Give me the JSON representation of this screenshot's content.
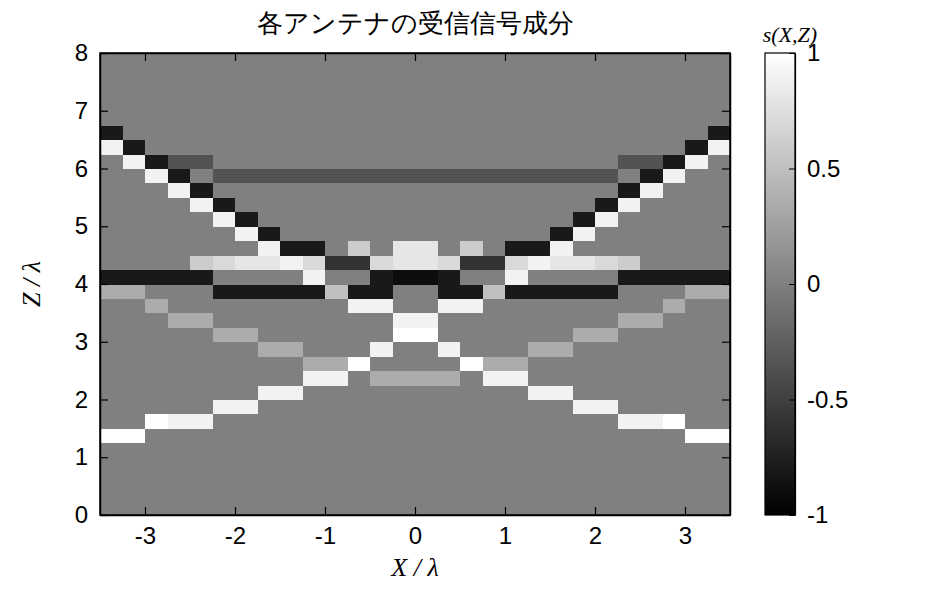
{
  "chart_data": {
    "type": "heatmap",
    "title": "各アンテナの受信信号成分",
    "x_label": "X / λ",
    "y_label": "Z / λ",
    "xlim": [
      -3.5,
      3.5
    ],
    "ylim": [
      0,
      8
    ],
    "xticks": [
      -3,
      -2,
      -1,
      0,
      1,
      2,
      3
    ],
    "yticks": [
      0,
      1,
      2,
      3,
      4,
      5,
      6,
      7,
      8
    ],
    "x_bins": [
      -3.5,
      -3.25,
      -3,
      -2.75,
      -2.5,
      -2.25,
      -2,
      -1.75,
      -1.5,
      -1.25,
      -1,
      -0.75,
      -0.5,
      -0.25,
      0,
      0.25,
      0.5,
      0.75,
      1,
      1.25,
      1.5,
      1.75,
      2,
      2.25,
      2.5,
      2.75,
      3,
      3.25,
      3.5
    ],
    "y_bins": [
      0,
      0.25,
      0.5,
      0.75,
      1,
      1.25,
      1.5,
      1.75,
      2,
      2.25,
      2.5,
      2.75,
      3,
      3.25,
      3.5,
      3.75,
      4,
      4.25,
      4.5,
      4.75,
      5,
      5.25,
      5.5,
      5.75,
      6,
      6.25,
      6.5,
      6.75,
      7,
      7.25,
      7.5,
      7.75,
      8
    ],
    "cells": [
      [
        0,
        0,
        0,
        0,
        0,
        0,
        0,
        0,
        0,
        0,
        0,
        0,
        0,
        0,
        0,
        0,
        0,
        0,
        0,
        0,
        0,
        0,
        0,
        0,
        0,
        0,
        0,
        0
      ],
      [
        0,
        0,
        0,
        0,
        0,
        0,
        0,
        0,
        0,
        0,
        0,
        0,
        0,
        0,
        0,
        0,
        0,
        0,
        0,
        0,
        0,
        0,
        0,
        0,
        0,
        0,
        0,
        0
      ],
      [
        0,
        0,
        0,
        0,
        0,
        0,
        0,
        0,
        0,
        0,
        0,
        0,
        0,
        0,
        0,
        0,
        0,
        0,
        0,
        0,
        0,
        0,
        0,
        0,
        0,
        0,
        0,
        0
      ],
      [
        0,
        0,
        0,
        0,
        0,
        0,
        0,
        0,
        0,
        0,
        0,
        0,
        0,
        0,
        0,
        0,
        0,
        0,
        0,
        0,
        0,
        0,
        0,
        0,
        0,
        0,
        0,
        0
      ],
      [
        0,
        0,
        0,
        0,
        0,
        0,
        0,
        0,
        0,
        0,
        0,
        0,
        0,
        0,
        0,
        0,
        0,
        0,
        0,
        0,
        0,
        0,
        0,
        0,
        0,
        0,
        0,
        0
      ],
      [
        1,
        1,
        0,
        0,
        0,
        0,
        0,
        0,
        0,
        0,
        0,
        0,
        0,
        0,
        0,
        0,
        0,
        0,
        0,
        0,
        0,
        0,
        0,
        0,
        0,
        0,
        1,
        1
      ],
      [
        0,
        0,
        1,
        0.9,
        0.9,
        0,
        0,
        0,
        0,
        0,
        0,
        0,
        0,
        0,
        0,
        0,
        0,
        0,
        0,
        0,
        0,
        0,
        0,
        0.9,
        0.9,
        1,
        0,
        0
      ],
      [
        0,
        0,
        0,
        0,
        0,
        0.9,
        0.9,
        0,
        0,
        0,
        0,
        0,
        0,
        0,
        0,
        0,
        0,
        0,
        0,
        0,
        0,
        0.9,
        0.9,
        0,
        0,
        0,
        0,
        0
      ],
      [
        0,
        0,
        0,
        0,
        0,
        0,
        0,
        0.9,
        0.9,
        0,
        0,
        0,
        0,
        0,
        0,
        0,
        0,
        0,
        0,
        0.9,
        0.9,
        0,
        0,
        0,
        0,
        0,
        0,
        0
      ],
      [
        0,
        0,
        0,
        0,
        0,
        0,
        0,
        0,
        0,
        0.9,
        0.9,
        0,
        0.35,
        0.35,
        0.35,
        0.35,
        0,
        0.9,
        0.9,
        0,
        0,
        0,
        0,
        0,
        0,
        0,
        0,
        0
      ],
      [
        0,
        0,
        0,
        0,
        0,
        0,
        0,
        0,
        0,
        0.35,
        0.35,
        1,
        0,
        0,
        0,
        0,
        1,
        0.35,
        0.35,
        0,
        0,
        0,
        0,
        0,
        0,
        0,
        0,
        0
      ],
      [
        0,
        0,
        0,
        0,
        0,
        0,
        0,
        0.35,
        0.35,
        0,
        0,
        0,
        0.9,
        0,
        0,
        0.9,
        0,
        0,
        0,
        0.35,
        0.35,
        0,
        0,
        0,
        0,
        0,
        0,
        0
      ],
      [
        0,
        0,
        0,
        0,
        0,
        0.35,
        0.35,
        0,
        0,
        0,
        0,
        0,
        0,
        1,
        1,
        0,
        0,
        0,
        0,
        0,
        0,
        0.35,
        0.35,
        0,
        0,
        0,
        0,
        0
      ],
      [
        0,
        0,
        0,
        0.35,
        0.35,
        0,
        0,
        0,
        0,
        0,
        0,
        0,
        0,
        0.9,
        0.9,
        0,
        0,
        0,
        0,
        0,
        0,
        0,
        0,
        0.35,
        0.35,
        0,
        0,
        0
      ],
      [
        0,
        0,
        0.35,
        0,
        0,
        0,
        0,
        0,
        0,
        0,
        0,
        0.9,
        0.9,
        0,
        0,
        0.9,
        0.9,
        0,
        0,
        0,
        0,
        0,
        0,
        0,
        0,
        0.35,
        0,
        0
      ],
      [
        0.35,
        0.35,
        0,
        0,
        0,
        -0.8,
        -0.8,
        -0.8,
        -0.8,
        -0.8,
        0.5,
        -0.8,
        -0.8,
        0,
        0,
        -0.8,
        -0.8,
        0.5,
        -0.8,
        -0.8,
        -0.8,
        -0.8,
        -0.8,
        0,
        0,
        0,
        0.35,
        0.35
      ],
      [
        -0.8,
        -0.8,
        -0.8,
        -0.8,
        -0.8,
        0,
        0,
        0,
        0,
        0.9,
        0,
        0,
        -0.8,
        -0.9,
        -0.9,
        -0.8,
        0,
        0,
        0.9,
        0,
        0,
        0,
        0,
        -0.8,
        -0.8,
        -0.8,
        -0.8,
        -0.8
      ],
      [
        0,
        0,
        0,
        0,
        0.6,
        0.7,
        0.8,
        0.8,
        0.9,
        0.7,
        -0.6,
        -0.6,
        0.7,
        0.8,
        0.8,
        0.7,
        -0.6,
        -0.6,
        0.7,
        0.9,
        0.8,
        0.8,
        0.7,
        0.6,
        0,
        0,
        0,
        0
      ],
      [
        0,
        0,
        0,
        0,
        0,
        0,
        0,
        0.9,
        -0.8,
        -0.8,
        0,
        0.6,
        0,
        0.8,
        0.8,
        0,
        0.6,
        0,
        -0.8,
        -0.8,
        0.9,
        0,
        0,
        0,
        0,
        0,
        0,
        0
      ],
      [
        0,
        0,
        0,
        0,
        0,
        0,
        0.9,
        -0.8,
        0,
        0,
        0,
        0,
        0,
        0,
        0,
        0,
        0,
        0,
        0,
        0,
        -0.8,
        0.9,
        0,
        0,
        0,
        0,
        0,
        0
      ],
      [
        0,
        0,
        0,
        0,
        0,
        0.9,
        -0.8,
        0,
        0,
        0,
        0,
        0,
        0,
        0,
        0,
        0,
        0,
        0,
        0,
        0,
        0,
        -0.8,
        0.9,
        0,
        0,
        0,
        0,
        0
      ],
      [
        0,
        0,
        0,
        0,
        0.9,
        -0.8,
        0,
        0,
        0,
        0,
        0,
        0,
        0,
        0,
        0,
        0,
        0,
        0,
        0,
        0,
        0,
        0,
        -0.8,
        0.9,
        0,
        0,
        0,
        0
      ],
      [
        0,
        0,
        0,
        0.9,
        -0.8,
        0,
        0,
        0,
        0,
        0,
        0,
        0,
        0,
        0,
        0,
        0,
        0,
        0,
        0,
        0,
        0,
        0,
        0,
        -0.8,
        0.9,
        0,
        0,
        0
      ],
      [
        0,
        0,
        0.9,
        -0.8,
        0,
        -0.35,
        -0.35,
        -0.35,
        -0.35,
        -0.35,
        -0.35,
        -0.35,
        -0.35,
        -0.35,
        -0.35,
        -0.35,
        -0.35,
        -0.35,
        -0.35,
        -0.35,
        -0.35,
        -0.35,
        -0.35,
        0,
        -0.8,
        0.9,
        0,
        0
      ],
      [
        0,
        0.9,
        -0.8,
        -0.35,
        -0.35,
        0,
        0,
        0,
        0,
        0,
        0,
        0,
        0,
        0,
        0,
        0,
        0,
        0,
        0,
        0,
        0,
        0,
        0,
        -0.35,
        -0.35,
        -0.8,
        0.9,
        0
      ],
      [
        0.9,
        -0.8,
        0,
        0,
        0,
        0,
        0,
        0,
        0,
        0,
        0,
        0,
        0,
        0,
        0,
        0,
        0,
        0,
        0,
        0,
        0,
        0,
        0,
        0,
        0,
        0,
        -0.8,
        0.9
      ],
      [
        -0.8,
        0,
        0,
        0,
        0,
        0,
        0,
        0,
        0,
        0,
        0,
        0,
        0,
        0,
        0,
        0,
        0,
        0,
        0,
        0,
        0,
        0,
        0,
        0,
        0,
        0,
        0,
        -0.8
      ],
      [
        0,
        0,
        0,
        0,
        0,
        0,
        0,
        0,
        0,
        0,
        0,
        0,
        0,
        0,
        0,
        0,
        0,
        0,
        0,
        0,
        0,
        0,
        0,
        0,
        0,
        0,
        0,
        0
      ],
      [
        0,
        0,
        0,
        0,
        0,
        0,
        0,
        0,
        0,
        0,
        0,
        0,
        0,
        0,
        0,
        0,
        0,
        0,
        0,
        0,
        0,
        0,
        0,
        0,
        0,
        0,
        0,
        0
      ],
      [
        0,
        0,
        0,
        0,
        0,
        0,
        0,
        0,
        0,
        0,
        0,
        0,
        0,
        0,
        0,
        0,
        0,
        0,
        0,
        0,
        0,
        0,
        0,
        0,
        0,
        0,
        0,
        0
      ],
      [
        0,
        0,
        0,
        0,
        0,
        0,
        0,
        0,
        0,
        0,
        0,
        0,
        0,
        0,
        0,
        0,
        0,
        0,
        0,
        0,
        0,
        0,
        0,
        0,
        0,
        0,
        0,
        0
      ],
      [
        0,
        0,
        0,
        0,
        0,
        0,
        0,
        0,
        0,
        0,
        0,
        0,
        0,
        0,
        0,
        0,
        0,
        0,
        0,
        0,
        0,
        0,
        0,
        0,
        0,
        0,
        0,
        0
      ]
    ],
    "color_label": "s(X,Z)",
    "color_range": [
      -1,
      1
    ],
    "color_ticks": [
      -1,
      -0.5,
      0,
      0.5,
      1
    ]
  }
}
